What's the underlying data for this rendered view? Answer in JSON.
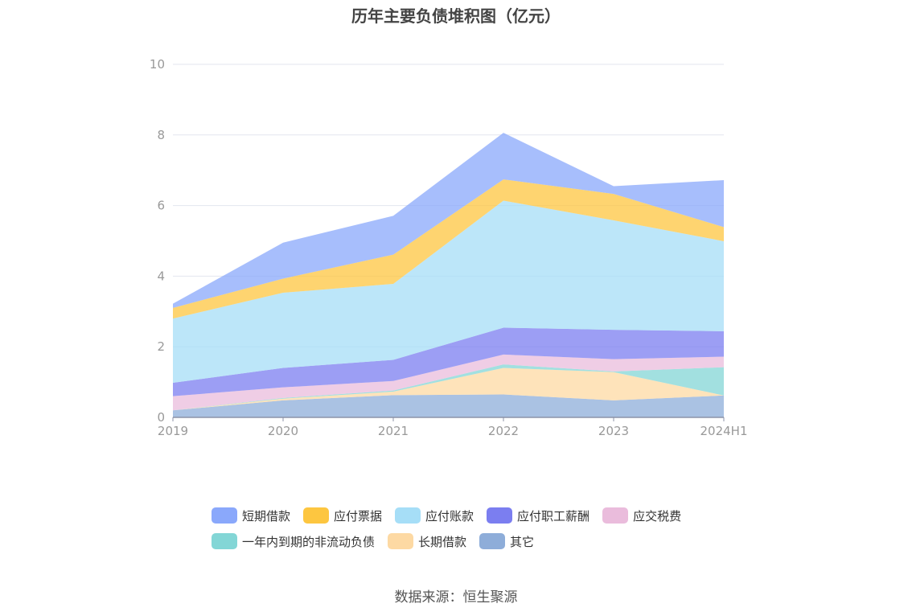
{
  "chart_data": {
    "type": "area",
    "stacked": true,
    "title": "历年主要负债堆积图（亿元）",
    "categories": [
      "2019",
      "2020",
      "2021",
      "2022",
      "2023",
      "2024H1"
    ],
    "ylim": [
      0,
      10
    ],
    "yticks": [
      0,
      2,
      4,
      6,
      8,
      10
    ],
    "series": [
      {
        "name": "其它",
        "color": "#8eadd9",
        "values": [
          0.2,
          0.48,
          0.63,
          0.65,
          0.48,
          0.62
        ]
      },
      {
        "name": "长期借款",
        "color": "#fdd9a3",
        "values": [
          0.0,
          0.05,
          0.1,
          0.75,
          0.8,
          0.0
        ]
      },
      {
        "name": "一年内到期的非流动负债",
        "color": "#83d6d6",
        "values": [
          0.0,
          0.02,
          0.03,
          0.1,
          0.02,
          0.8
        ]
      },
      {
        "name": "应交税费",
        "color": "#eabcdc",
        "values": [
          0.4,
          0.3,
          0.27,
          0.28,
          0.35,
          0.3
        ]
      },
      {
        "name": "应付职工薪酬",
        "color": "#7b7ef0",
        "values": [
          0.38,
          0.55,
          0.6,
          0.76,
          0.83,
          0.72
        ]
      },
      {
        "name": "应付账款",
        "color": "#a6def7",
        "values": [
          1.82,
          2.13,
          2.15,
          3.6,
          3.1,
          2.55
        ]
      },
      {
        "name": "应付票据",
        "color": "#fdc640",
        "values": [
          0.3,
          0.4,
          0.83,
          0.6,
          0.75,
          0.4
        ]
      },
      {
        "name": "短期借款",
        "color": "#8aa8fb",
        "values": [
          0.12,
          1.02,
          1.1,
          1.32,
          0.22,
          1.33
        ]
      }
    ],
    "legend_order": [
      "短期借款",
      "应付票据",
      "应付账款",
      "应付职工薪酬",
      "应交税费",
      "一年内到期的非流动负债",
      "长期借款",
      "其它"
    ],
    "legend_position": "bottom"
  },
  "source": "数据来源：恒生聚源"
}
